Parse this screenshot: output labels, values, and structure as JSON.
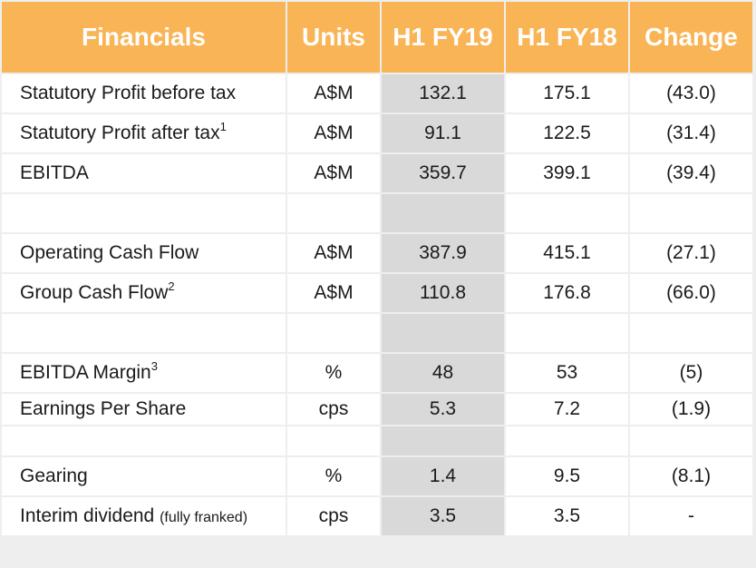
{
  "headers": {
    "label": "Financials",
    "units": "Units",
    "h1fy19": "H1 FY19",
    "h1fy18": "H1 FY18",
    "change": "Change"
  },
  "rows": [
    {
      "label": "Statutory Profit before tax",
      "sup": "",
      "note": "",
      "units": "A$M",
      "h1fy19": "132.1",
      "h1fy18": "175.1",
      "change": "(43.0)"
    },
    {
      "label": "Statutory Profit after tax",
      "sup": "1",
      "note": "",
      "units": "A$M",
      "h1fy19": "91.1",
      "h1fy18": "122.5",
      "change": "(31.4)"
    },
    {
      "label": "EBITDA",
      "sup": "",
      "note": "",
      "units": "A$M",
      "h1fy19": "359.7",
      "h1fy18": "399.1",
      "change": "(39.4)"
    },
    {
      "label": "Operating Cash Flow",
      "sup": "",
      "note": "",
      "units": "A$M",
      "h1fy19": "387.9",
      "h1fy18": "415.1",
      "change": "(27.1)"
    },
    {
      "label": "Group Cash Flow",
      "sup": "2",
      "note": "",
      "units": "A$M",
      "h1fy19": "110.8",
      "h1fy18": "176.8",
      "change": "(66.0)"
    },
    {
      "label": "EBITDA Margin",
      "sup": "3",
      "note": "",
      "units": "%",
      "h1fy19": "48",
      "h1fy18": "53",
      "change": "(5)"
    },
    {
      "label": "Earnings Per Share",
      "sup": "",
      "note": "",
      "units": "cps",
      "h1fy19": "5.3",
      "h1fy18": "7.2",
      "change": "(1.9)"
    },
    {
      "label": "Gearing",
      "sup": "",
      "note": "",
      "units": "%",
      "h1fy19": "1.4",
      "h1fy18": "9.5",
      "change": "(8.1)"
    },
    {
      "label": "Interim dividend",
      "sup": "",
      "note": "(fully franked)",
      "units": "cps",
      "h1fy19": "3.5",
      "h1fy18": "3.5",
      "change": "-"
    }
  ],
  "colors": {
    "header_bg": "#f9b455",
    "header_text": "#ffffff",
    "highlight_column": "#d9d9d9",
    "page_bg": "#eeeeee"
  }
}
